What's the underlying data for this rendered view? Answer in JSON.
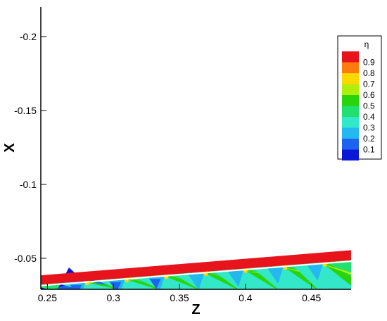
{
  "chart_data": {
    "type": "contour",
    "xlabel": "Z",
    "ylabel": "X",
    "xlim": [
      0.245,
      0.48
    ],
    "ylim": [
      -0.029,
      -0.22
    ],
    "x_ticks": [
      {
        "value": 0.25,
        "label": "0.25"
      },
      {
        "value": 0.3,
        "label": "0.3"
      },
      {
        "value": 0.35,
        "label": "0.35"
      },
      {
        "value": 0.4,
        "label": "0.4"
      },
      {
        "value": 0.45,
        "label": "0.45"
      }
    ],
    "y_ticks": [
      {
        "value": -0.2,
        "label": "-0.2"
      },
      {
        "value": -0.15,
        "label": "-0.15"
      },
      {
        "value": -0.1,
        "label": "-0.1"
      },
      {
        "value": -0.05,
        "label": "-0.05"
      }
    ],
    "legend": {
      "title": "η",
      "position": "right",
      "levels": [
        {
          "label": "0.9",
          "color": "#e8141c"
        },
        {
          "label": "0.8",
          "color": "#ff7b0e"
        },
        {
          "label": "0.7",
          "color": "#ffd800"
        },
        {
          "label": "0.6",
          "color": "#b0ee0c"
        },
        {
          "label": "0.5",
          "color": "#2ad40b"
        },
        {
          "label": "0.4",
          "color": "#22e070"
        },
        {
          "label": "0.3",
          "color": "#33e8c8"
        },
        {
          "label": "0.2",
          "color": "#23b8f0"
        },
        {
          "label": "0.1",
          "color": "#1e62f0"
        },
        {
          "label": "",
          "color": "#0a18d6"
        }
      ]
    },
    "field": {
      "red_band_top": [
        [
          0.245,
          -0.0385
        ],
        [
          0.48,
          -0.0555
        ]
      ],
      "red_band_bottom": [
        [
          0.245,
          -0.0322
        ],
        [
          0.48,
          -0.0487
        ]
      ],
      "hole_centers_z": [
        0.28,
        0.31,
        0.34,
        0.37,
        0.4,
        0.43,
        0.46
      ]
    },
    "grid": false
  }
}
